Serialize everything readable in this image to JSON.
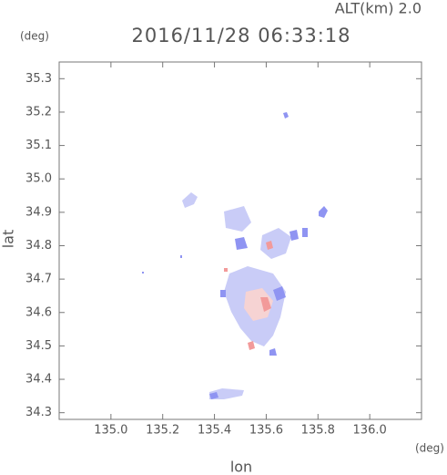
{
  "chart_data": {
    "type": "map",
    "title": "2016/11/28 06:33:18",
    "subtitle": "ALT(km) 2.0",
    "x_label": "lon",
    "x_unit": "(deg)",
    "y_label": "lat",
    "y_unit": "(deg)",
    "xlim": [
      134.8,
      136.2
    ],
    "xticks": [
      {
        "value": 135.0,
        "label": "135.0"
      },
      135.2,
      135.4,
      135.6,
      135.8,
      {
        "value": 136.0,
        "label": "136.0"
      }
    ],
    "ylim": [
      34.28,
      35.35
    ],
    "yticks": [
      34.3,
      34.4,
      34.5,
      34.6,
      34.7,
      34.8,
      34.9,
      {
        "value": 35.0,
        "label": "35.0"
      },
      35.1,
      35.2,
      35.3
    ]
  }
}
